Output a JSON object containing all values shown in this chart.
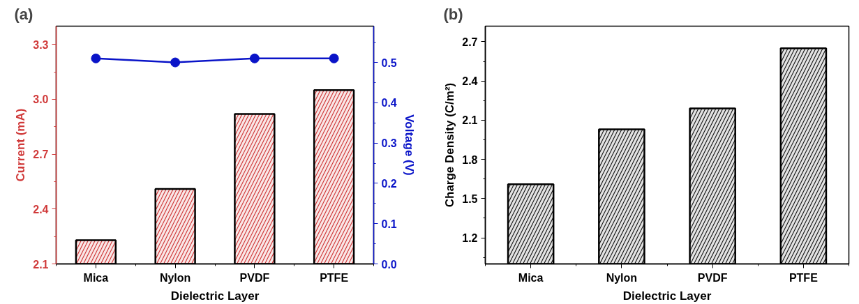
{
  "chart_data": [
    {
      "type": "bar",
      "title": "(a)",
      "xlabel": "Dielectric Layer",
      "ylabel": "Current (mA)",
      "y2label": "Voltage (V)",
      "categories": [
        "Mica",
        "Nylon",
        "PVDF",
        "PTFE"
      ],
      "series": [
        {
          "type": "bar",
          "color": "#d03a3a",
          "values": [
            2.23,
            2.51,
            2.92,
            3.05
          ]
        },
        {
          "type": "line",
          "axis": "y2",
          "color": "#0a14c8",
          "marker": "circle",
          "values": [
            0.51,
            0.5,
            0.51,
            0.51
          ]
        }
      ],
      "ylim": [
        2.1,
        3.4
      ],
      "yticks": [
        2.1,
        2.4,
        2.7,
        {
          "value": 3,
          "label": "3.0"
        },
        3.3
      ],
      "y2lim": [
        0,
        0.59
      ],
      "y2ticks": [
        {
          "value": 0,
          "label": "0.0"
        },
        0.1,
        0.2,
        0.3,
        0.4,
        0.5
      ],
      "grid": false
    },
    {
      "type": "bar",
      "title": "(b)",
      "xlabel": "Dielectric Layer",
      "ylabel": "Charge Density (C/m²)",
      "categories": [
        "Mica",
        "Nylon",
        "PVDF",
        "PTFE"
      ],
      "series": [
        {
          "color": "#1a1a1a",
          "values": [
            1.61,
            2.03,
            2.19,
            2.65
          ]
        }
      ],
      "ylim": [
        1.0,
        2.82
      ],
      "yticks": [
        1.2,
        1.5,
        1.8,
        2.1,
        2.4,
        2.7
      ],
      "grid": false
    }
  ]
}
